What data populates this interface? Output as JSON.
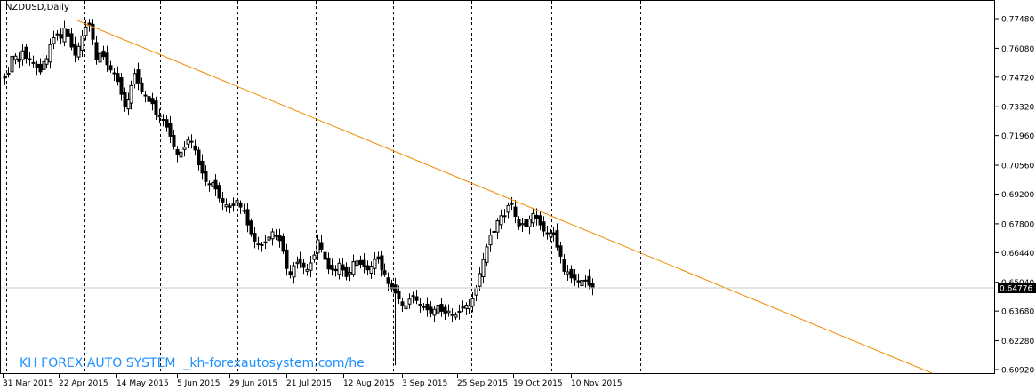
{
  "header": {
    "symbol": "NZDUSD,Daily"
  },
  "watermark": {
    "text": "KH FOREX AUTO SYSTEM  _kh-forexautosystem.com/he"
  },
  "colors": {
    "trendline": "#f08c00",
    "current_line": "#c8c8c8",
    "candle": "#000000",
    "watermark": "#1e90ff",
    "background": "#ffffff"
  },
  "chart_data": {
    "type": "candlestick",
    "symbol": "NZDUSD",
    "timeframe": "Daily",
    "y_ticks": [
      "0.77480",
      "0.76080",
      "0.74720",
      "0.73320",
      "0.71960",
      "0.70560",
      "0.69200",
      "0.67800",
      "0.66440",
      "0.65040",
      "0.63680",
      "0.62280",
      "0.60920"
    ],
    "x_ticks": [
      "31 Mar 2015",
      "22 Apr 2015",
      "14 May 2015",
      "5 Jun 2015",
      "29 Jun 2015",
      "21 Jul 2015",
      "12 Aug 2015",
      "3 Sep 2015",
      "25 Sep 2015",
      "19 Oct 2015",
      "10 Nov 2015"
    ],
    "ylim": [
      0.6092,
      0.7748
    ],
    "current_price": "0.64776",
    "grid": "vertical dashed separators",
    "closes": [
      0.7468,
      0.749,
      0.757,
      0.7571,
      0.7545,
      0.7596,
      0.7561,
      0.7559,
      0.7537,
      0.7516,
      0.7497,
      0.7545,
      0.7559,
      0.7625,
      0.7658,
      0.7672,
      0.7656,
      0.7704,
      0.7663,
      0.7614,
      0.7576,
      0.7617,
      0.7667,
      0.7709,
      0.7716,
      0.7651,
      0.7555,
      0.7584,
      0.7569,
      0.7531,
      0.7506,
      0.7492,
      0.7452,
      0.7391,
      0.7335,
      0.7364,
      0.7432,
      0.7489,
      0.7445,
      0.7405,
      0.7387,
      0.7357,
      0.7347,
      0.7294,
      0.7289,
      0.7268,
      0.7236,
      0.7193,
      0.7146,
      0.7105,
      0.7118,
      0.7141,
      0.7175,
      0.7165,
      0.7128,
      0.7058,
      0.7019,
      0.6979,
      0.6969,
      0.6975,
      0.6944,
      0.6901,
      0.6878,
      0.6869,
      0.6857,
      0.6866,
      0.689,
      0.6859,
      0.6842,
      0.6775,
      0.6733,
      0.6698,
      0.6686,
      0.6681,
      0.6689,
      0.6717,
      0.6742,
      0.6722,
      0.6701,
      0.665,
      0.6569,
      0.6541,
      0.6582,
      0.6598,
      0.6598,
      0.6574,
      0.6564,
      0.6595,
      0.6632,
      0.6704,
      0.666,
      0.6612,
      0.6567,
      0.6564,
      0.6559,
      0.6594,
      0.6562,
      0.6531,
      0.6551,
      0.6601,
      0.6604,
      0.6589,
      0.6578,
      0.6563,
      0.658,
      0.6612,
      0.6613,
      0.6564,
      0.6543,
      0.6498,
      0.6474,
      0.6453,
      0.6425,
      0.6393,
      0.6393,
      0.6424,
      0.6437,
      0.6418,
      0.6395,
      0.6385,
      0.6374,
      0.6359,
      0.6376,
      0.6396,
      0.6367,
      0.6358,
      0.6368,
      0.6349,
      0.6349,
      0.6367,
      0.6387,
      0.6396,
      0.6391,
      0.6426,
      0.6478,
      0.6545,
      0.6611,
      0.6671,
      0.6726,
      0.6744,
      0.6794,
      0.6818,
      0.6818,
      0.6866,
      0.6871,
      0.6815,
      0.677,
      0.6781,
      0.6765,
      0.6802,
      0.6828,
      0.6804,
      0.6775,
      0.6746,
      0.6735,
      0.6736,
      0.673,
      0.667,
      0.6627,
      0.6556,
      0.6553,
      0.6525,
      0.6516,
      0.6506,
      0.6513,
      0.6514,
      0.649,
      0.6477
    ]
  }
}
